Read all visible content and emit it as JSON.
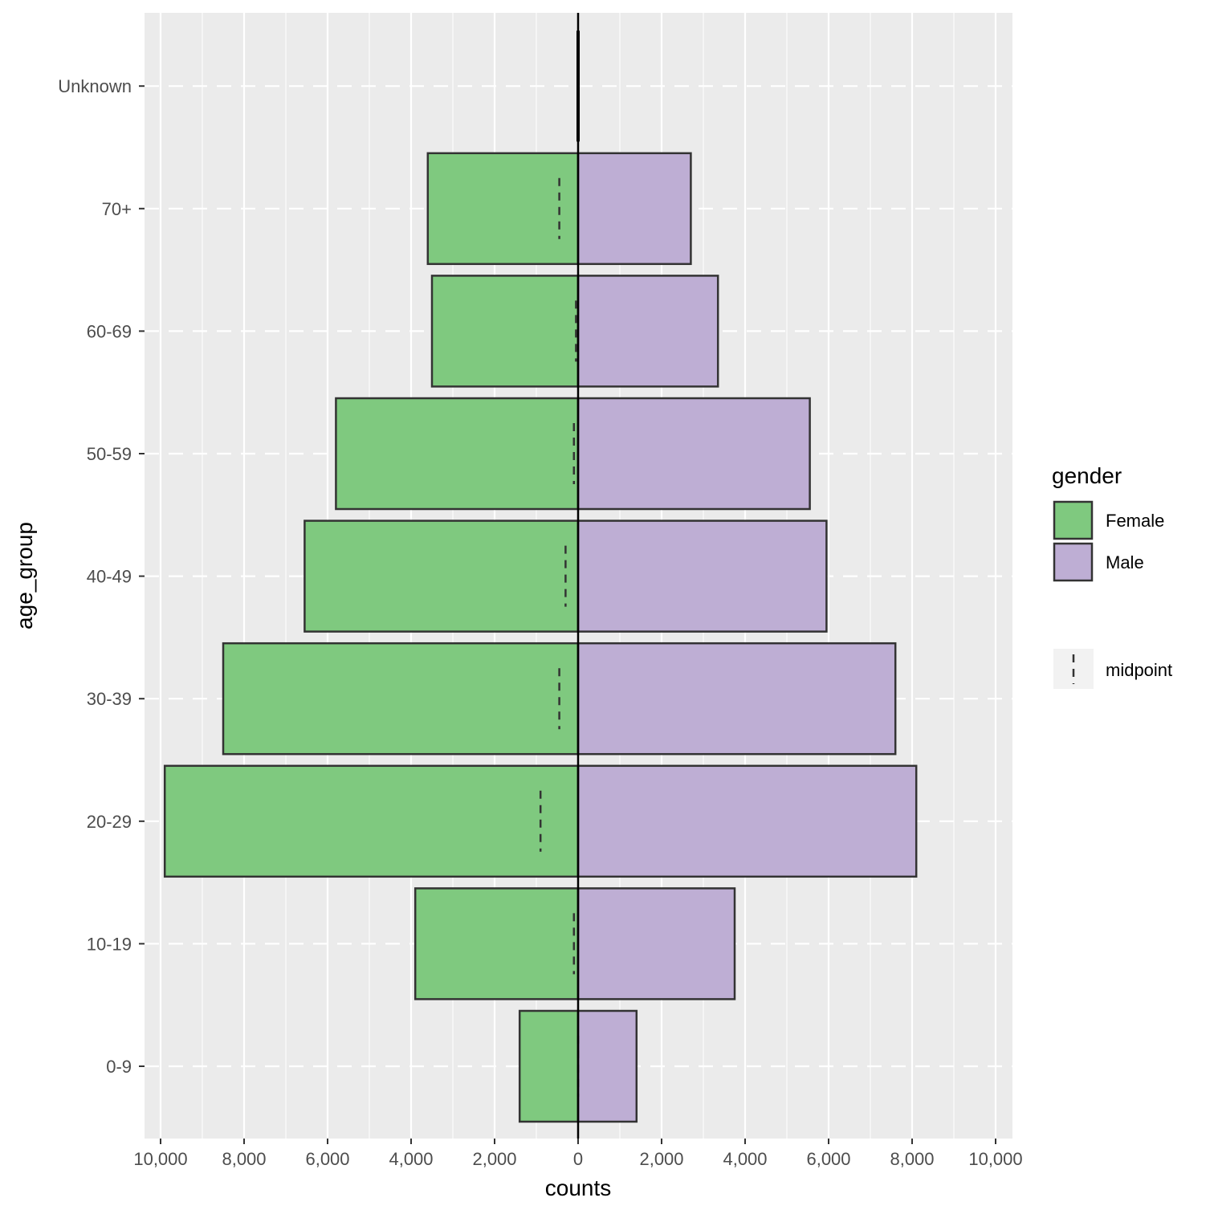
{
  "chart_data": {
    "type": "bar",
    "orientation": "horizontal",
    "subtype": "population-pyramid",
    "categories": [
      "0-9",
      "10-19",
      "20-29",
      "30-39",
      "40-49",
      "50-59",
      "60-69",
      "70+",
      "Unknown"
    ],
    "series": [
      {
        "name": "Female",
        "values": [
          1400,
          3900,
          9900,
          8500,
          6550,
          5800,
          3500,
          3600,
          0
        ],
        "color": "#7fc97f"
      },
      {
        "name": "Male",
        "values": [
          1400,
          3750,
          8100,
          7600,
          5950,
          5550,
          3350,
          2700,
          0
        ],
        "color": "#beaed4"
      }
    ],
    "midpoint": {
      "label": "midpoint",
      "values": [
        0,
        -100,
        -900,
        -450,
        -300,
        -100,
        -50,
        -450,
        0
      ]
    },
    "xlabel": "counts",
    "ylabel": "age_group",
    "xlim": [
      -10400,
      10400
    ],
    "x_ticks": [
      -10000,
      -8000,
      -6000,
      -4000,
      -2000,
      0,
      2000,
      4000,
      6000,
      8000,
      10000
    ],
    "x_tick_labels": [
      "10,000",
      "8,000",
      "6,000",
      "4,000",
      "2,000",
      "0",
      "2,000",
      "4,000",
      "6,000",
      "8,000",
      "10,000"
    ],
    "legend": {
      "title": "gender",
      "position": "right"
    },
    "grid": true
  }
}
